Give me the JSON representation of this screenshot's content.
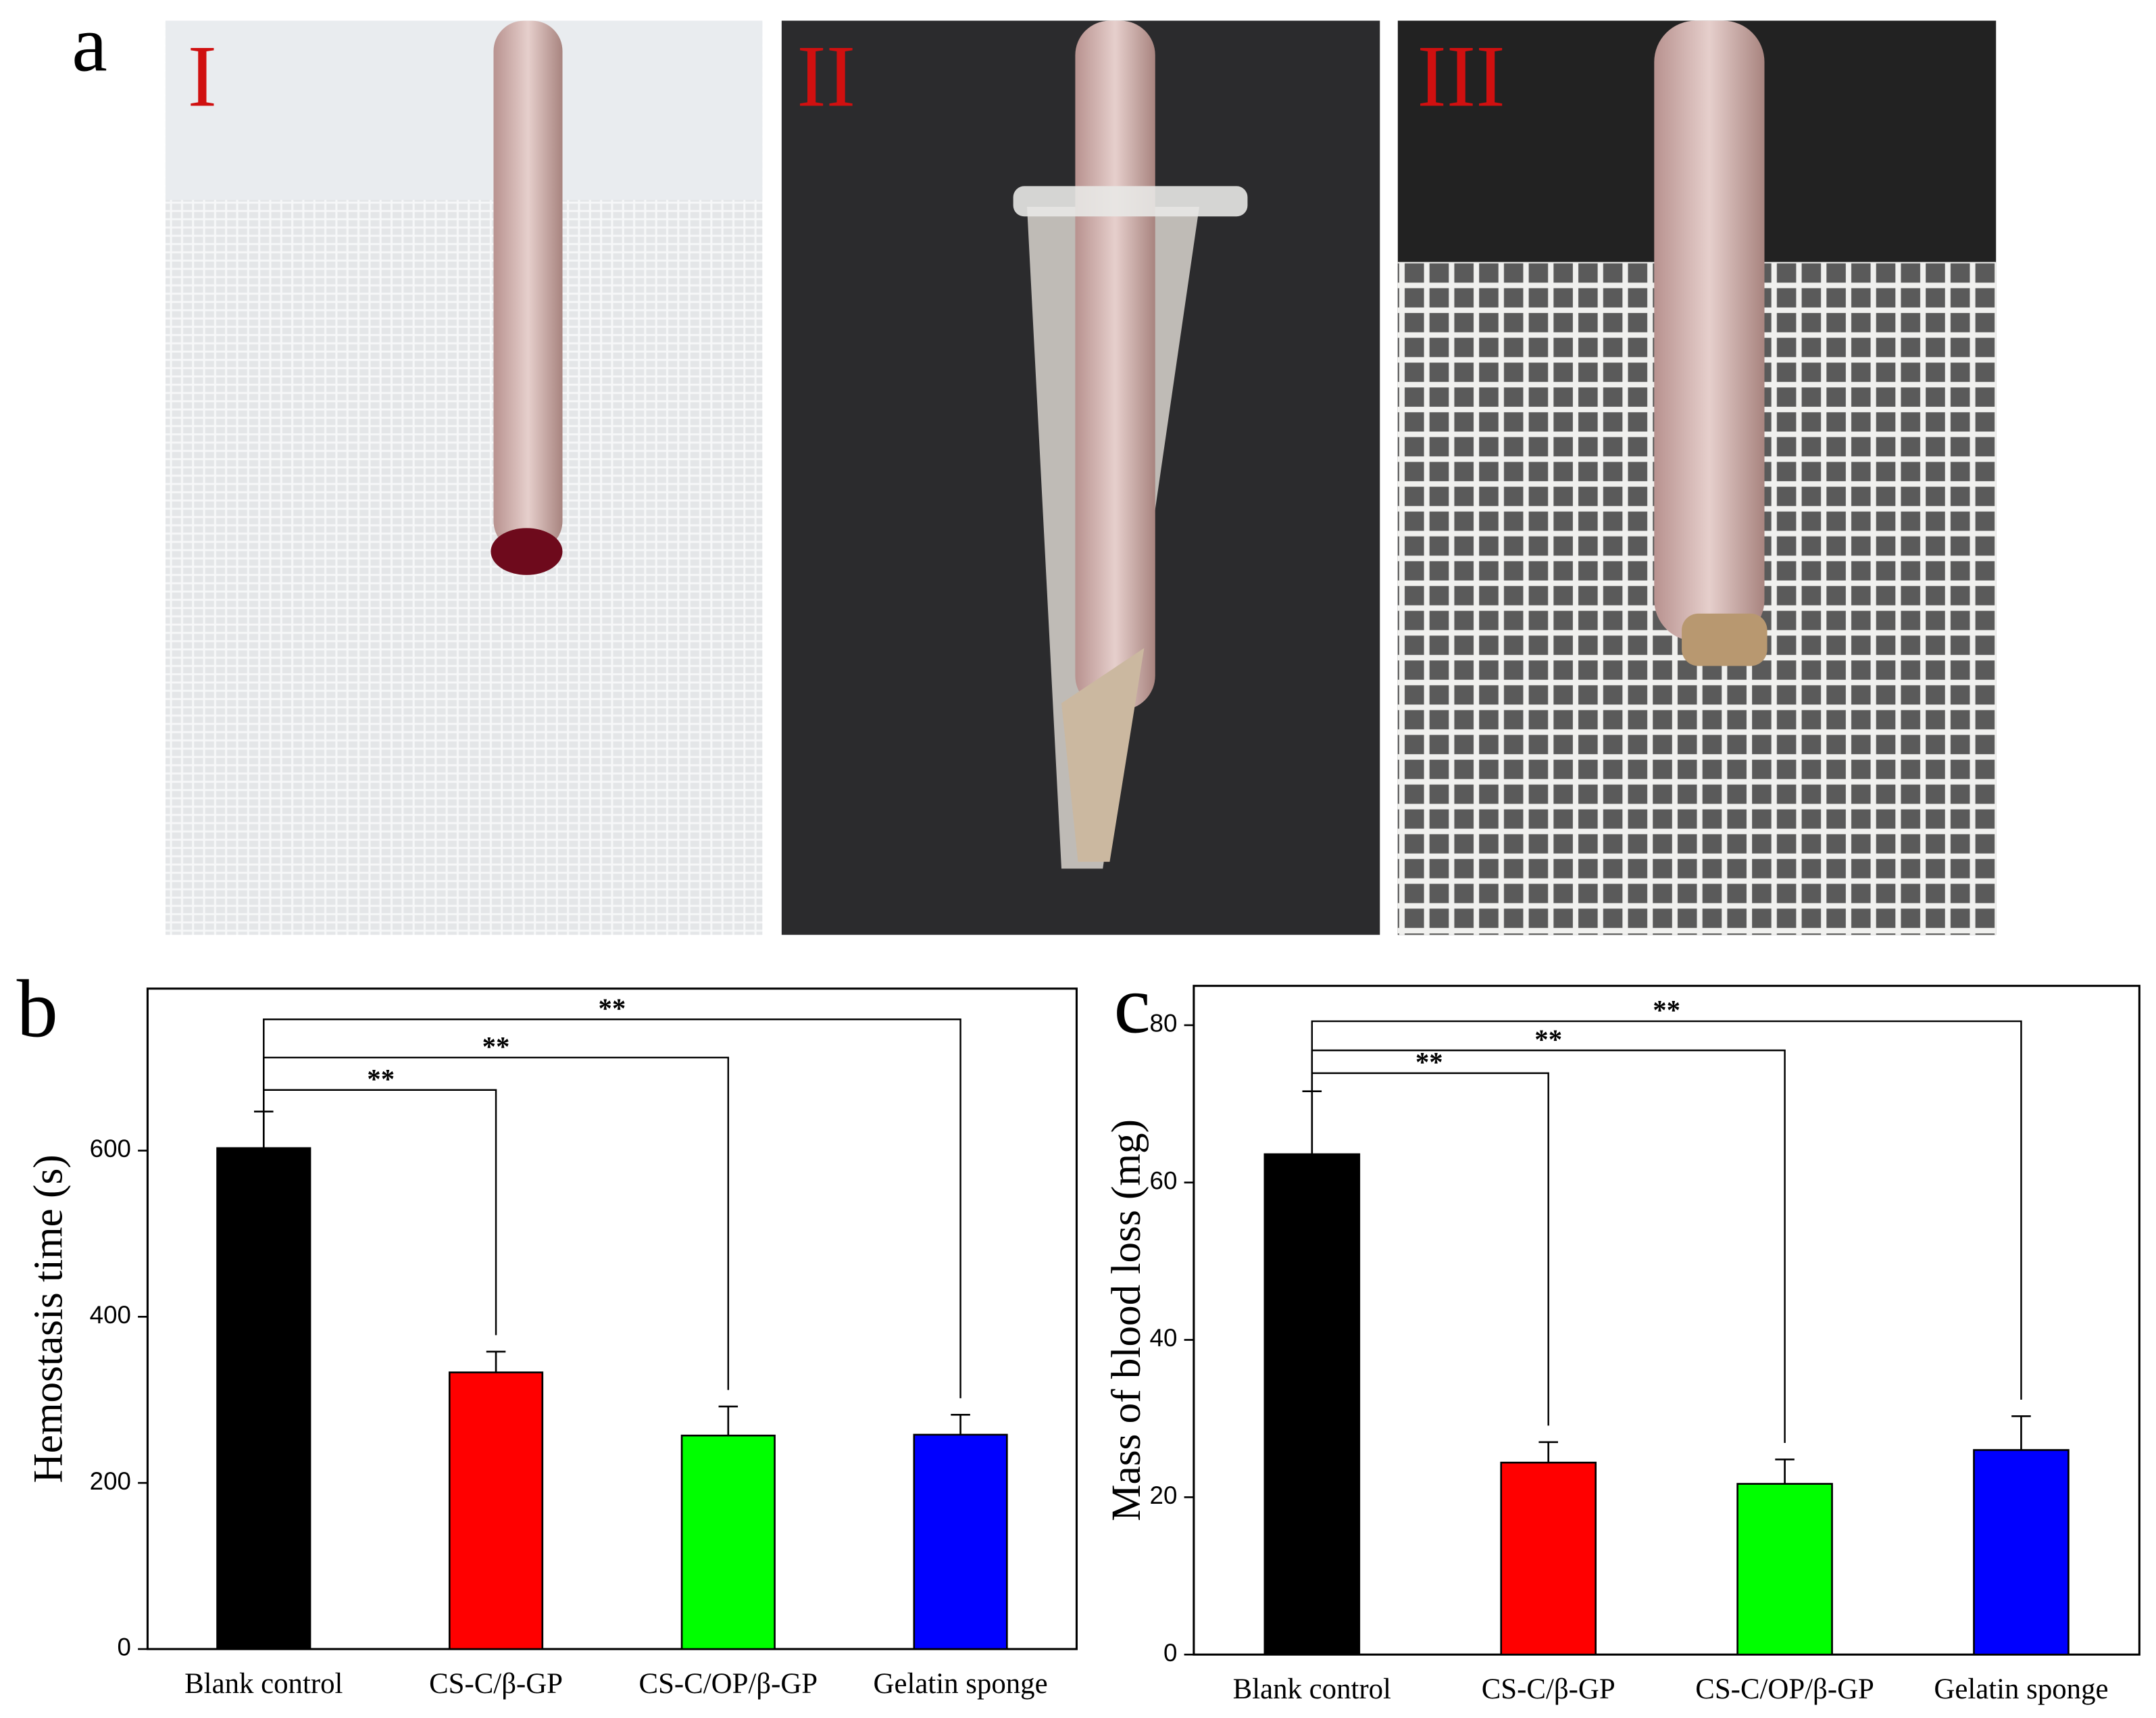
{
  "panel_a": {
    "label": "a",
    "photos": [
      "I",
      "II",
      "III"
    ]
  },
  "chart_data": [
    {
      "type": "bar",
      "panel_label": "b",
      "y_label": "Hemostasis time (s)",
      "categories": [
        "Blank control",
        "CS-C/β-GP",
        "CS-C/OP/β-GP",
        "Gelatin sponge"
      ],
      "values": [
        603,
        333,
        257,
        258
      ],
      "errors": [
        44,
        25,
        35,
        24
      ],
      "colors": [
        "#000000",
        "#ff0000",
        "#00ff00",
        "#0000ff"
      ],
      "ylim": [
        0,
        795
      ],
      "yticks": [
        0,
        200,
        400,
        600
      ],
      "annotations": [
        {
          "from": 0,
          "to": 1,
          "y": 673,
          "label": "**"
        },
        {
          "from": 0,
          "to": 2,
          "y": 712,
          "label": "**"
        },
        {
          "from": 0,
          "to": 3,
          "y": 758,
          "label": "**"
        }
      ]
    },
    {
      "type": "bar",
      "panel_label": "c",
      "y_label": "Mass of blood loss (mg)",
      "categories": [
        "Blank control",
        "CS-C/β-GP",
        "CS-C/OP/β-GP",
        "Gelatin sponge"
      ],
      "values": [
        63.6,
        24.4,
        21.7,
        26.0
      ],
      "errors": [
        8.0,
        2.6,
        3.1,
        4.3
      ],
      "colors": [
        "#000000",
        "#ff0000",
        "#00ff00",
        "#0000ff"
      ],
      "ylim": [
        0,
        85
      ],
      "yticks": [
        0,
        20,
        40,
        60,
        80
      ],
      "annotations": [
        {
          "from": 0,
          "to": 1,
          "y": 73.9,
          "label": "**"
        },
        {
          "from": 0,
          "to": 2,
          "y": 76.8,
          "label": "**"
        },
        {
          "from": 0,
          "to": 3,
          "y": 80.5,
          "label": "**"
        }
      ]
    }
  ]
}
